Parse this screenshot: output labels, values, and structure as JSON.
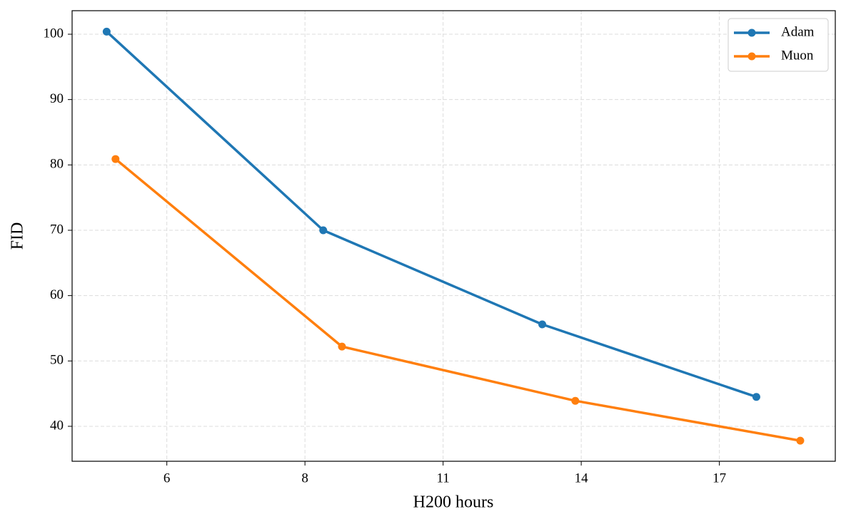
{
  "chart_data": {
    "type": "line",
    "x_label": "H200 hours",
    "y_label": "FID",
    "xlim": [
      3.73,
      19.2
    ],
    "ylim": [
      34.65,
      103.6
    ],
    "xticks": [
      {
        "value": 5.65,
        "label": "6"
      },
      {
        "value": 8.45,
        "label": "8"
      },
      {
        "value": 11.25,
        "label": "11"
      },
      {
        "value": 14.05,
        "label": "14"
      },
      {
        "value": 16.85,
        "label": "17"
      }
    ],
    "yticks": [
      40,
      50,
      60,
      70,
      80,
      90,
      100
    ],
    "grid": true,
    "legend": "upper right",
    "series": [
      {
        "name": "Adam",
        "color": "#1f77b4",
        "x": [
          4.43,
          8.82,
          13.26,
          17.6
        ],
        "values": [
          100.4,
          70.0,
          55.6,
          44.5
        ]
      },
      {
        "name": "Muon",
        "color": "#ff7f0e",
        "x": [
          4.61,
          9.2,
          13.93,
          18.49
        ],
        "values": [
          80.9,
          52.2,
          43.9,
          37.8
        ]
      }
    ]
  }
}
